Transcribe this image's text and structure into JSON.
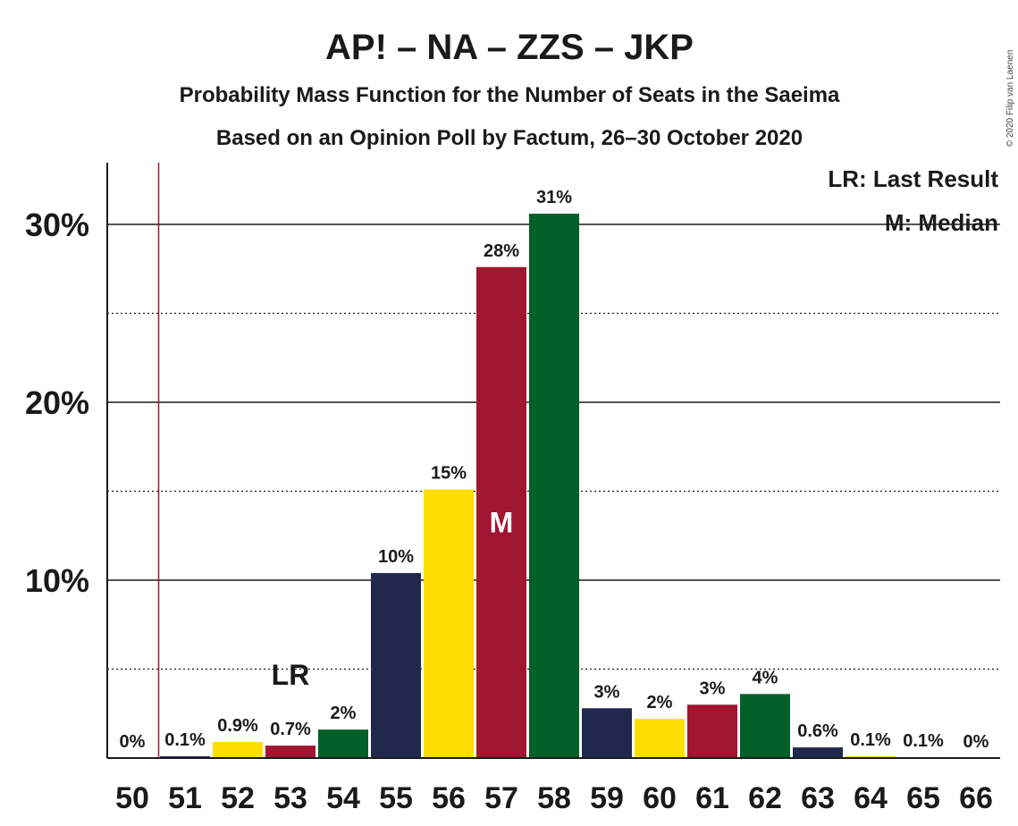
{
  "chart_data": {
    "type": "bar",
    "title": "AP! – NA – ZZS – JKP",
    "subtitle": "Probability Mass Function for the Number of Seats in the Saeima",
    "subtitle2": "Based on an Opinion Poll by Factum, 26–30 October 2020",
    "copyright": "© 2020 Filip van Laenen",
    "categories": [
      "50",
      "51",
      "52",
      "53",
      "54",
      "55",
      "56",
      "57",
      "58",
      "59",
      "60",
      "61",
      "62",
      "63",
      "64",
      "65",
      "66"
    ],
    "values": [
      0,
      0.1,
      0.9,
      0.7,
      1.6,
      10.4,
      15.1,
      27.6,
      30.6,
      2.8,
      2.2,
      3.0,
      3.6,
      0.6,
      0.1,
      0.05,
      0
    ],
    "value_labels": [
      "0%",
      "0.1%",
      "0.9%",
      "0.7%",
      "2%",
      "10%",
      "15%",
      "28%",
      "31%",
      "3%",
      "2%",
      "3%",
      "4%",
      "0.6%",
      "0.1%",
      "0.1%",
      "0%"
    ],
    "bar_colors": [
      "#21284e",
      "#21284e",
      "#ffdd00",
      "#a01530",
      "#006028",
      "#21284e",
      "#ffdd00",
      "#a01530",
      "#006028",
      "#21284e",
      "#ffdd00",
      "#a01530",
      "#006028",
      "#21284e",
      "#ffdd00",
      "#a01530",
      "#006028"
    ],
    "yticks": [
      "10%",
      "20%",
      "30%"
    ],
    "ytick_values": [
      10,
      20,
      30
    ],
    "ylim": [
      0,
      33.5
    ],
    "grid": true,
    "last_result_seat": "51",
    "last_result_label_seat": "53",
    "median_seat": "57",
    "lr_marker": "LR",
    "median_marker": "M",
    "legend_lr": "LR: Last Result",
    "legend_median": "M: Median",
    "legend_position": "top-right",
    "colors": {
      "ap": "#21284e",
      "na": "#ffdd00",
      "zzs": "#a01530",
      "jkp": "#006028",
      "last_result_line": "#a01530"
    }
  }
}
